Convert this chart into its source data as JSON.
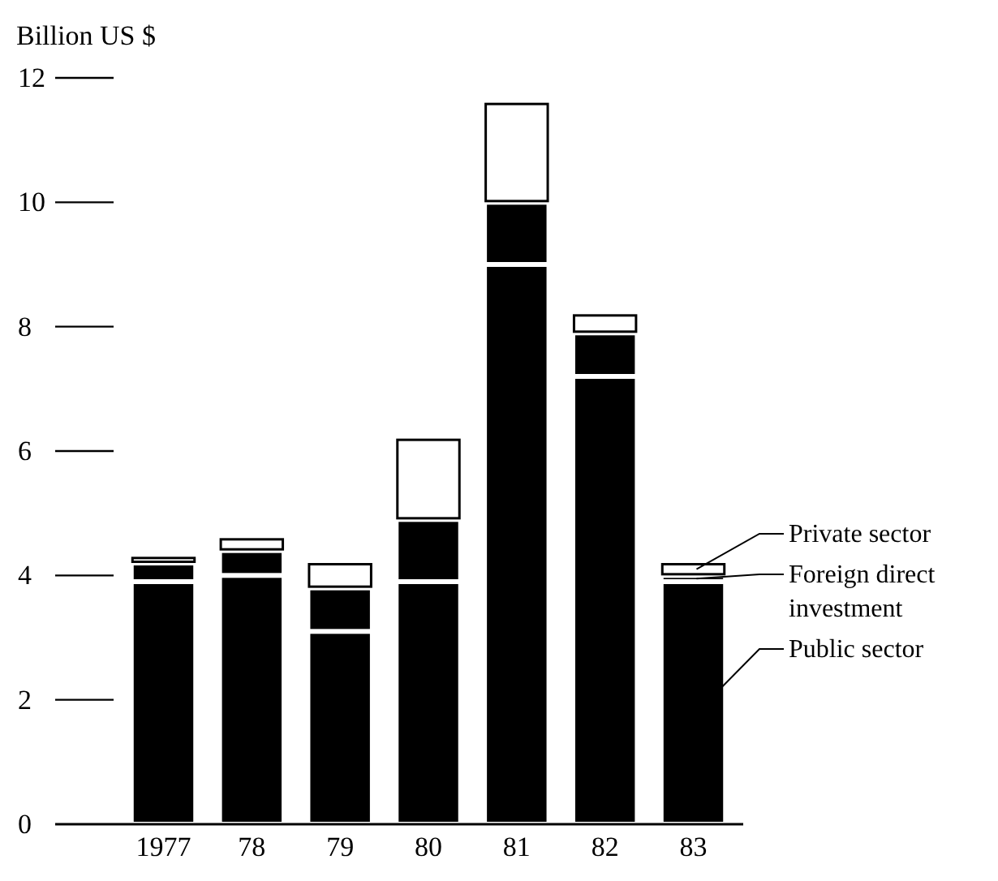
{
  "chart_data": {
    "type": "bar",
    "stacked": true,
    "ylabel": "Billion US $",
    "categories": [
      "1977",
      "78",
      "79",
      "80",
      "81",
      "82",
      "83"
    ],
    "series": [
      {
        "name": "Public sector",
        "color": "#000000",
        "values": [
          3.9,
          4.0,
          3.1,
          3.9,
          9.0,
          7.2,
          3.9
        ]
      },
      {
        "name": "Foreign direct investment",
        "color": "#000000",
        "values": [
          0.3,
          0.4,
          0.7,
          1.0,
          1.0,
          0.7,
          0.1
        ]
      },
      {
        "name": "Private sector",
        "color": "#ffffff",
        "values": [
          0.1,
          0.2,
          0.4,
          1.3,
          1.6,
          0.3,
          0.2
        ]
      }
    ],
    "ylim": [
      0,
      12
    ],
    "yticks": [
      0,
      2,
      4,
      6,
      8,
      10,
      12
    ],
    "grid": false,
    "legend": "right"
  }
}
